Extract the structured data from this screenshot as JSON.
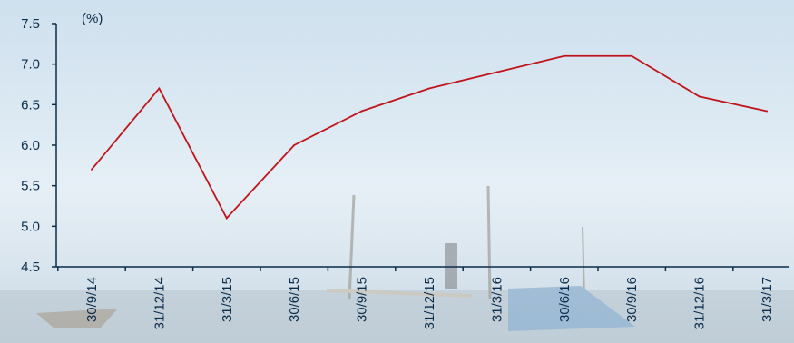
{
  "chart_data": {
    "type": "line",
    "unit_label": "(%)",
    "categories": [
      "30/9/14",
      "31/12/14",
      "31/3/15",
      "30/6/15",
      "30/9/15",
      "31/12/15",
      "31/3/16",
      "30/6/16",
      "30/9/16",
      "31/12/16",
      "31/3/17"
    ],
    "series": [
      {
        "values": [
          5.7,
          6.7,
          5.1,
          6.0,
          6.42,
          6.7,
          6.9,
          7.1,
          7.1,
          6.6,
          6.42
        ],
        "color": "#c0141a"
      }
    ],
    "yticks": [
      "4.5",
      "5.0",
      "5.5",
      "6.0",
      "6.5",
      "7.0",
      "7.5"
    ],
    "ylim": [
      4.5,
      7.5
    ],
    "grid": false,
    "axis_color": "#0b2c4a"
  }
}
